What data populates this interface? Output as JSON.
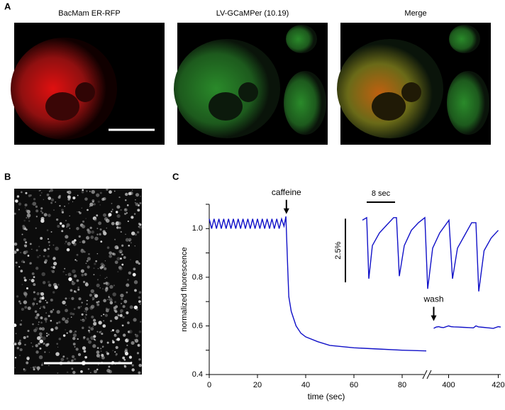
{
  "panels": {
    "a": {
      "letter": "A",
      "titles": [
        "BacMam ER-RFP",
        "LV-GCaMPer (10.19)",
        "Merge"
      ]
    },
    "b": {
      "letter": "B"
    },
    "c": {
      "letter": "C"
    }
  },
  "chart_data": [
    {
      "type": "line",
      "ylabel": "normalized fluorescence",
      "xlabel": "time (sec)",
      "xlim": [
        0,
        90
      ],
      "x2lim": [
        393,
        421
      ],
      "ylim": [
        0.4,
        1.1
      ],
      "xticks": [
        0,
        20,
        40,
        60,
        80
      ],
      "x2ticks": [
        400,
        420
      ],
      "yticks": [
        0.4,
        0.6,
        0.8,
        {
          "value": 1,
          "label": "1.0"
        }
      ],
      "yminorticks": [
        0.5,
        0.7,
        0.9,
        1.1
      ],
      "color": "#1010c8",
      "series": [
        {
          "x": [
            0,
            1,
            2,
            3,
            4,
            5,
            6,
            7,
            8,
            9,
            10,
            11,
            12,
            13,
            14,
            15,
            16,
            17,
            18,
            19,
            20,
            21,
            22,
            23,
            24,
            25,
            26,
            27,
            28,
            29,
            30,
            31,
            31.8,
            32.5,
            33,
            34,
            36,
            38,
            40,
            45,
            50,
            60,
            70,
            80,
            90
          ],
          "values": [
            1.04,
            1.0,
            1.04,
            1.0,
            1.04,
            1.0,
            1.04,
            1.0,
            1.04,
            1.0,
            1.04,
            1.0,
            1.04,
            1.0,
            1.04,
            1.0,
            1.04,
            1.0,
            1.04,
            1.0,
            1.04,
            1.0,
            1.04,
            1.0,
            1.04,
            1.0,
            1.04,
            1.0,
            1.04,
            1.0,
            1.04,
            1.01,
            1.05,
            0.85,
            0.72,
            0.66,
            0.6,
            0.57,
            0.555,
            0.535,
            0.52,
            0.51,
            0.505,
            0.5,
            0.497
          ]
        },
        {
          "axis": "x2",
          "x": [
            394,
            395,
            396,
            397,
            398,
            400,
            401,
            402,
            404,
            406,
            408,
            410,
            411,
            412,
            414,
            416,
            418,
            420,
            421
          ],
          "values": [
            0.59,
            0.595,
            0.597,
            0.594,
            0.593,
            0.6,
            0.597,
            0.596,
            0.595,
            0.594,
            0.593,
            0.592,
            0.6,
            0.596,
            0.594,
            0.592,
            0.59,
            0.597,
            0.595
          ]
        }
      ],
      "annotations": [
        {
          "text": "caffeine",
          "x": 32,
          "y": 1.06,
          "axis": "x"
        },
        {
          "text": "wash",
          "x": 394,
          "y": 0.62,
          "axis": "x2"
        }
      ]
    },
    {
      "type": "line",
      "xlim": [
        0,
        39
      ],
      "ylim": [
        -0.6,
        2.8
      ],
      "color": "#1010c8",
      "scale_x": {
        "value": 8,
        "label": "8 sec"
      },
      "scale_y": {
        "value": 2.5,
        "label": "2.5%"
      },
      "series": [
        {
          "x": [
            0.2,
            1.4,
            2.0,
            3,
            5,
            7,
            9,
            9.8,
            10.6,
            12,
            14,
            16,
            17.8,
            18.6,
            20,
            22,
            24.6,
            25.6,
            27,
            29,
            31,
            32.2,
            33,
            34.5,
            36.5,
            38.5
          ],
          "values": [
            2.4,
            2.5,
            0.1,
            1.4,
            1.9,
            2.2,
            2.5,
            2.5,
            0.2,
            1.4,
            2.0,
            2.3,
            2.5,
            -0.3,
            1.3,
            1.9,
            2.4,
            0.1,
            1.3,
            1.8,
            2.3,
            2.3,
            -0.4,
            1.2,
            1.7,
            2.0
          ]
        }
      ]
    }
  ]
}
